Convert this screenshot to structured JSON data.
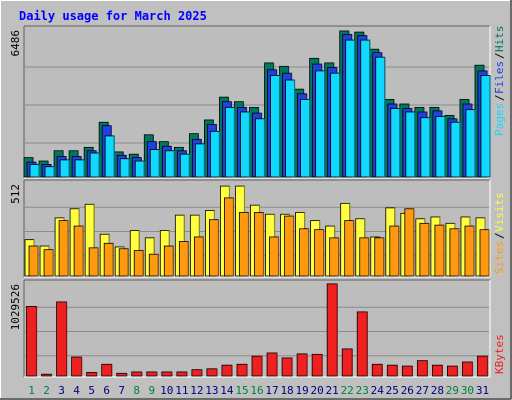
{
  "title": "Daily usage for March 2025",
  "colors": {
    "background": "#c0c0c0",
    "plot_background": "#bdbdbd",
    "title": "#0000ff",
    "hits": "#007860",
    "files": "#2040e0",
    "pages": "#10d8ff",
    "visits": "#ffff40",
    "sites": "#ff9a10",
    "kbytes": "#ee2020",
    "weekend_label": "#00803c",
    "weekday_label": "#000080"
  },
  "chart_data": [
    {
      "type": "bar",
      "title": "Daily usage for March 2025",
      "categories": [
        "1",
        "2",
        "3",
        "4",
        "5",
        "6",
        "7",
        "8",
        "9",
        "10",
        "11",
        "12",
        "13",
        "14",
        "15",
        "16",
        "17",
        "18",
        "19",
        "20",
        "21",
        "22",
        "23",
        "24",
        "25",
        "26",
        "27",
        "28",
        "29",
        "30",
        "31"
      ],
      "weekend_days": [
        "1",
        "2",
        "8",
        "9",
        "15",
        "16",
        "22",
        "23",
        "29",
        "30"
      ],
      "ymax_label": "6486",
      "ylim": [
        0,
        6486
      ],
      "legend": [
        "Pages",
        "Files",
        "Hits"
      ],
      "legend_separator": "/",
      "series": [
        {
          "name": "Hits",
          "values": [
            850,
            700,
            1150,
            1150,
            1300,
            2400,
            1100,
            1000,
            1850,
            1550,
            1300,
            1900,
            2500,
            3500,
            3300,
            3050,
            5000,
            4850,
            3850,
            5200,
            5000,
            6400,
            6350,
            5600,
            3400,
            3200,
            3050,
            3050,
            2700,
            3400,
            4900
          ]
        },
        {
          "name": "Files",
          "values": [
            650,
            550,
            900,
            900,
            1150,
            2250,
            950,
            850,
            1550,
            1350,
            1150,
            1650,
            2300,
            3300,
            3050,
            2800,
            4700,
            4550,
            3650,
            4950,
            4800,
            6250,
            6200,
            5450,
            3200,
            3000,
            2850,
            2900,
            2550,
            3200,
            4650
          ]
        },
        {
          "name": "Pages",
          "values": [
            550,
            450,
            750,
            750,
            1050,
            1800,
            800,
            700,
            1200,
            1150,
            1000,
            1450,
            2000,
            3050,
            2850,
            2550,
            4450,
            4250,
            3400,
            4650,
            4550,
            6000,
            6000,
            5250,
            3000,
            2850,
            2600,
            2650,
            2400,
            2950,
            4450
          ]
        }
      ]
    },
    {
      "type": "bar",
      "categories": [
        "1",
        "2",
        "3",
        "4",
        "5",
        "6",
        "7",
        "8",
        "9",
        "10",
        "11",
        "12",
        "13",
        "14",
        "15",
        "16",
        "17",
        "18",
        "19",
        "20",
        "21",
        "22",
        "23",
        "24",
        "25",
        "26",
        "27",
        "28",
        "29",
        "30",
        "31"
      ],
      "ymax_label": "512",
      "ylim": [
        0,
        512
      ],
      "legend": [
        "Sites",
        "Visits"
      ],
      "legend_separator": "/",
      "series": [
        {
          "name": "Visits",
          "values": [
            200,
            165,
            320,
            370,
            395,
            230,
            160,
            250,
            210,
            250,
            335,
            335,
            360,
            495,
            495,
            390,
            340,
            340,
            350,
            305,
            275,
            400,
            315,
            215,
            375,
            345,
            315,
            325,
            290,
            325,
            320
          ]
        },
        {
          "name": "Sites",
          "values": [
            165,
            145,
            305,
            275,
            155,
            180,
            150,
            140,
            120,
            165,
            190,
            215,
            310,
            430,
            350,
            350,
            215,
            330,
            260,
            255,
            210,
            305,
            210,
            210,
            275,
            370,
            290,
            280,
            260,
            275,
            255
          ]
        }
      ]
    },
    {
      "type": "bar",
      "categories": [
        "1",
        "2",
        "3",
        "4",
        "5",
        "6",
        "7",
        "8",
        "9",
        "10",
        "11",
        "12",
        "13",
        "14",
        "15",
        "16",
        "17",
        "18",
        "19",
        "20",
        "21",
        "22",
        "23",
        "24",
        "25",
        "26",
        "27",
        "28",
        "29",
        "30",
        "31"
      ],
      "ymax_label": "1029526",
      "ylim": [
        0,
        1029526
      ],
      "legend": [
        "KBytes"
      ],
      "series": [
        {
          "name": "KBytes",
          "values": [
            770000,
            20000,
            820000,
            210000,
            40000,
            130000,
            30000,
            45000,
            45000,
            45000,
            45000,
            70000,
            80000,
            120000,
            130000,
            220000,
            255000,
            200000,
            245000,
            240000,
            1020000,
            300000,
            710000,
            130000,
            120000,
            110000,
            170000,
            120000,
            110000,
            155000,
            220000
          ]
        }
      ]
    }
  ]
}
